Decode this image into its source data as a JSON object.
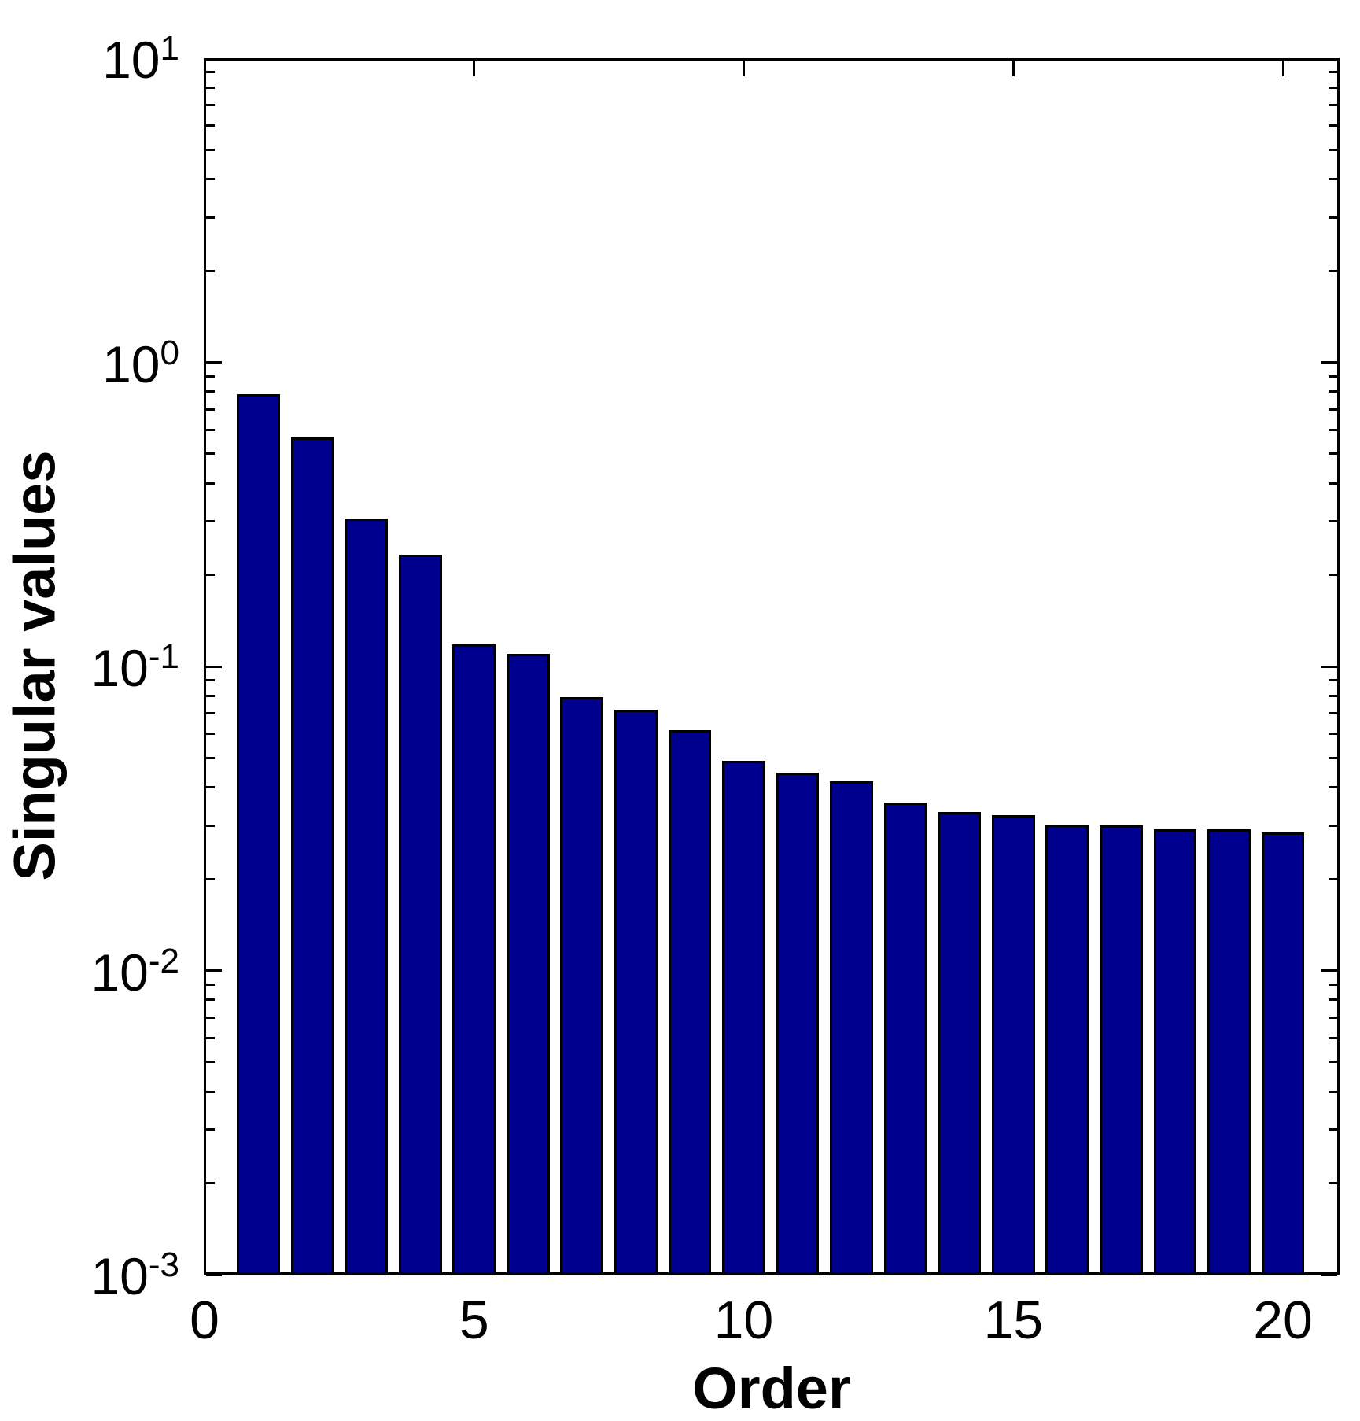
{
  "chart_data": {
    "type": "bar",
    "title": "",
    "xlabel": "Order",
    "ylabel": "Singular values",
    "x": [
      1,
      2,
      3,
      4,
      5,
      6,
      7,
      8,
      9,
      10,
      11,
      12,
      13,
      14,
      15,
      16,
      17,
      18,
      19,
      20
    ],
    "values": [
      0.785,
      0.565,
      0.307,
      0.233,
      0.118,
      0.11,
      0.0795,
      0.0722,
      0.0617,
      0.049,
      0.0448,
      0.0419,
      0.0356,
      0.0333,
      0.0324,
      0.0302,
      0.0301,
      0.0292,
      0.0292,
      0.0284
    ],
    "bar_width": 0.8,
    "bar_color": "#00008F",
    "bar_edge_color": "#000000",
    "yscale": "log",
    "ylim": [
      0.001,
      10
    ],
    "xlim": [
      0,
      21.05
    ],
    "xticks": [
      0,
      5,
      10,
      15,
      20
    ],
    "xtick_labels": [
      "0",
      "5",
      "10",
      "15",
      "20"
    ],
    "ytick_exponents": [
      1,
      0,
      -1,
      -2,
      -3
    ],
    "ytick_base": "10",
    "grid": false,
    "legend": null,
    "background_color": "#ffffff",
    "axis_color": "#000000"
  }
}
